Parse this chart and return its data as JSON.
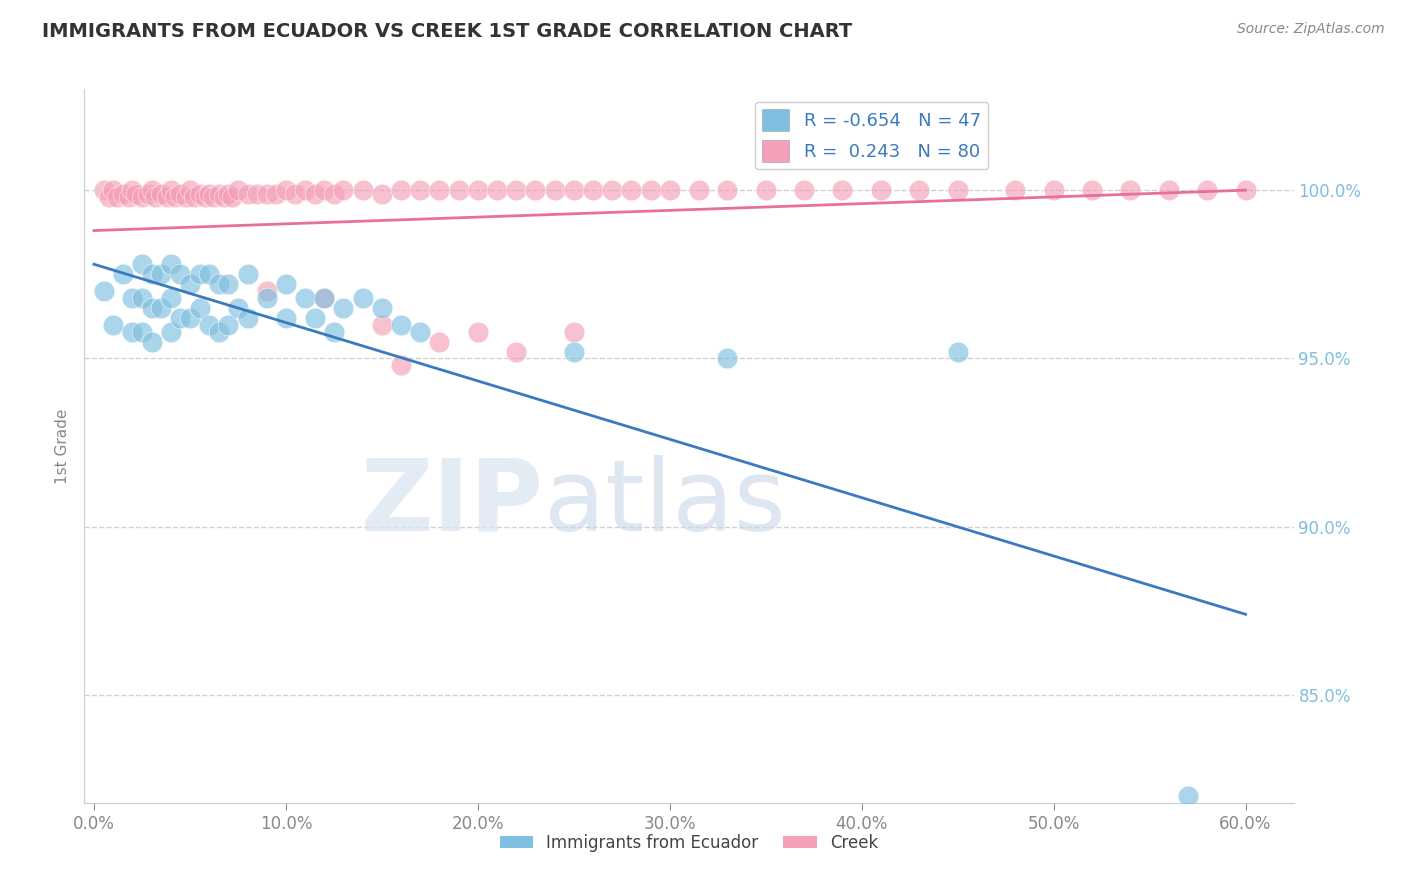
{
  "title": "IMMIGRANTS FROM ECUADOR VS CREEK 1ST GRADE CORRELATION CHART",
  "source_text": "Source: ZipAtlas.com",
  "ylabel_label": "1st Grade",
  "x_tick_labels": [
    "0.0%",
    "10.0%",
    "20.0%",
    "30.0%",
    "40.0%",
    "50.0%",
    "60.0%"
  ],
  "x_tick_positions": [
    0.0,
    0.1,
    0.2,
    0.3,
    0.4,
    0.5,
    0.6
  ],
  "y_tick_labels": [
    "85.0%",
    "90.0%",
    "95.0%",
    "100.0%"
  ],
  "y_tick_positions": [
    0.85,
    0.9,
    0.95,
    1.0
  ],
  "xlim": [
    -0.005,
    0.625
  ],
  "ylim": [
    0.818,
    1.03
  ],
  "r_blue": -0.654,
  "n_blue": 47,
  "r_pink": 0.243,
  "n_pink": 80,
  "blue_color": "#7fbfdf",
  "pink_color": "#f4a0b8",
  "blue_line_color": "#3a7abf",
  "pink_line_color": "#e87098",
  "blue_line_x": [
    0.0,
    0.6
  ],
  "blue_line_y": [
    0.978,
    0.874
  ],
  "pink_line_x": [
    0.0,
    0.6
  ],
  "pink_line_y": [
    0.988,
    1.0
  ],
  "blue_scatter_x": [
    0.005,
    0.01,
    0.015,
    0.02,
    0.02,
    0.025,
    0.025,
    0.025,
    0.03,
    0.03,
    0.03,
    0.035,
    0.035,
    0.04,
    0.04,
    0.04,
    0.045,
    0.045,
    0.05,
    0.05,
    0.055,
    0.055,
    0.06,
    0.06,
    0.065,
    0.065,
    0.07,
    0.07,
    0.075,
    0.08,
    0.08,
    0.09,
    0.1,
    0.1,
    0.11,
    0.115,
    0.12,
    0.125,
    0.13,
    0.14,
    0.15,
    0.16,
    0.17,
    0.25,
    0.33,
    0.45,
    0.57
  ],
  "blue_scatter_y": [
    0.97,
    0.96,
    0.975,
    0.968,
    0.958,
    0.978,
    0.968,
    0.958,
    0.975,
    0.965,
    0.955,
    0.975,
    0.965,
    0.978,
    0.968,
    0.958,
    0.975,
    0.962,
    0.972,
    0.962,
    0.975,
    0.965,
    0.975,
    0.96,
    0.972,
    0.958,
    0.972,
    0.96,
    0.965,
    0.975,
    0.962,
    0.968,
    0.972,
    0.962,
    0.968,
    0.962,
    0.968,
    0.958,
    0.965,
    0.968,
    0.965,
    0.96,
    0.958,
    0.952,
    0.95,
    0.952,
    0.82
  ],
  "pink_scatter_x": [
    0.005,
    0.008,
    0.01,
    0.012,
    0.015,
    0.018,
    0.02,
    0.022,
    0.025,
    0.028,
    0.03,
    0.032,
    0.035,
    0.038,
    0.04,
    0.042,
    0.045,
    0.048,
    0.05,
    0.052,
    0.055,
    0.058,
    0.06,
    0.062,
    0.065,
    0.068,
    0.07,
    0.072,
    0.075,
    0.08,
    0.085,
    0.09,
    0.095,
    0.1,
    0.105,
    0.11,
    0.115,
    0.12,
    0.125,
    0.13,
    0.14,
    0.15,
    0.16,
    0.17,
    0.18,
    0.19,
    0.2,
    0.21,
    0.22,
    0.23,
    0.24,
    0.25,
    0.26,
    0.27,
    0.28,
    0.29,
    0.3,
    0.315,
    0.33,
    0.35,
    0.37,
    0.39,
    0.41,
    0.43,
    0.45,
    0.48,
    0.5,
    0.52,
    0.54,
    0.56,
    0.58,
    0.6,
    0.12,
    0.15,
    0.18,
    0.09,
    0.2,
    0.16,
    0.25,
    0.22
  ],
  "pink_scatter_y": [
    1.0,
    0.998,
    1.0,
    0.998,
    0.999,
    0.998,
    1.0,
    0.999,
    0.998,
    0.999,
    1.0,
    0.998,
    0.999,
    0.998,
    1.0,
    0.998,
    0.999,
    0.998,
    1.0,
    0.998,
    0.999,
    0.998,
    0.999,
    0.998,
    0.999,
    0.998,
    0.999,
    0.998,
    1.0,
    0.999,
    0.999,
    0.999,
    0.999,
    1.0,
    0.999,
    1.0,
    0.999,
    1.0,
    0.999,
    1.0,
    1.0,
    0.999,
    1.0,
    1.0,
    1.0,
    1.0,
    1.0,
    1.0,
    1.0,
    1.0,
    1.0,
    1.0,
    1.0,
    1.0,
    1.0,
    1.0,
    1.0,
    1.0,
    1.0,
    1.0,
    1.0,
    1.0,
    1.0,
    1.0,
    1.0,
    1.0,
    1.0,
    1.0,
    1.0,
    1.0,
    1.0,
    1.0,
    0.968,
    0.96,
    0.955,
    0.97,
    0.958,
    0.948,
    0.958,
    0.952
  ]
}
